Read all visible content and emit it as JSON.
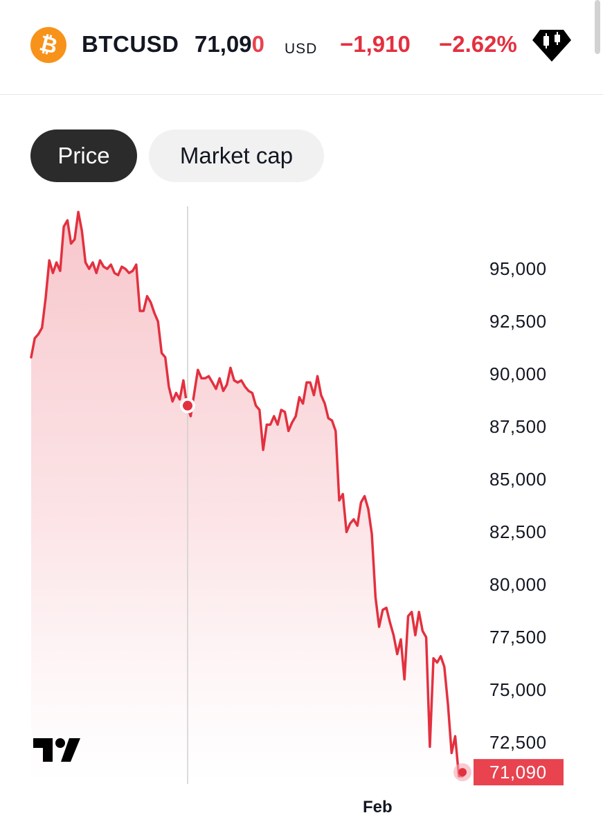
{
  "header": {
    "coin_icon": "bitcoin-icon",
    "coin_symbol": "₿",
    "symbol": "BTCUSD",
    "price_main": "71,09",
    "price_tick": "0",
    "currency": "USD",
    "change": "−1,910",
    "change_percent": "−2.62%",
    "badge_icon": "candlestick-badge-icon"
  },
  "tabs": [
    {
      "label": "Price",
      "active": true
    },
    {
      "label": "Market cap",
      "active": false
    }
  ],
  "colors": {
    "line": "#e3303f",
    "fill": "#f7c6cb",
    "accent": "#f7931a",
    "active_tab": "#2b2b2b"
  },
  "chart_data": {
    "type": "area",
    "series": [
      {
        "values": [
          90800,
          91700,
          91900,
          92200,
          93600,
          95400,
          94800,
          95300,
          94900,
          97000,
          97300,
          96200,
          96400,
          97700,
          96800,
          95300,
          95000,
          95300,
          94800,
          95400,
          95100,
          95000,
          95200,
          94800,
          94700,
          95100,
          95000,
          94800,
          94900,
          95200,
          93000,
          93000,
          93700,
          93400,
          92900,
          92500,
          91000,
          90800,
          89400,
          88700,
          89100,
          88800,
          89700,
          88500,
          88000,
          89100,
          90200,
          89800,
          89800,
          89900,
          89600,
          89300,
          89800,
          89200,
          89500,
          90300,
          89700,
          89600,
          89700,
          89400,
          89200,
          89100,
          88500,
          88300,
          86400,
          87600,
          87600,
          88000,
          87600,
          88300,
          88200,
          87300,
          87700,
          88000,
          88900,
          88600,
          89600,
          89600,
          89000,
          89900,
          89000,
          88600,
          87900,
          87800,
          87300,
          84000,
          84300,
          82500,
          82900,
          83100,
          82800,
          83900,
          84200,
          83600,
          82400,
          79400,
          78000,
          78800,
          78900,
          78200,
          77600,
          76700,
          77400,
          75500,
          78500,
          78700,
          77600,
          78700,
          77800,
          77500,
          72300,
          76500,
          76300,
          76600,
          76100,
          74300,
          72000,
          72800,
          70900,
          70900
        ]
      }
    ],
    "x_labels": [
      "Feb"
    ],
    "y_ticks": [
      "95,000",
      "92,500",
      "90,000",
      "87,500",
      "85,000",
      "82,500",
      "80,000",
      "77,500",
      "75,000",
      "72,500"
    ],
    "y_tick_values": [
      95000,
      92500,
      90000,
      87500,
      85000,
      82500,
      80000,
      77500,
      75000,
      72500
    ],
    "ylim": [
      70600,
      97900
    ],
    "last_value": 71090,
    "last_label": "71,090",
    "crosshair_value": 88500,
    "grid": false,
    "watermark_icon": "tradingview-logo-icon"
  }
}
